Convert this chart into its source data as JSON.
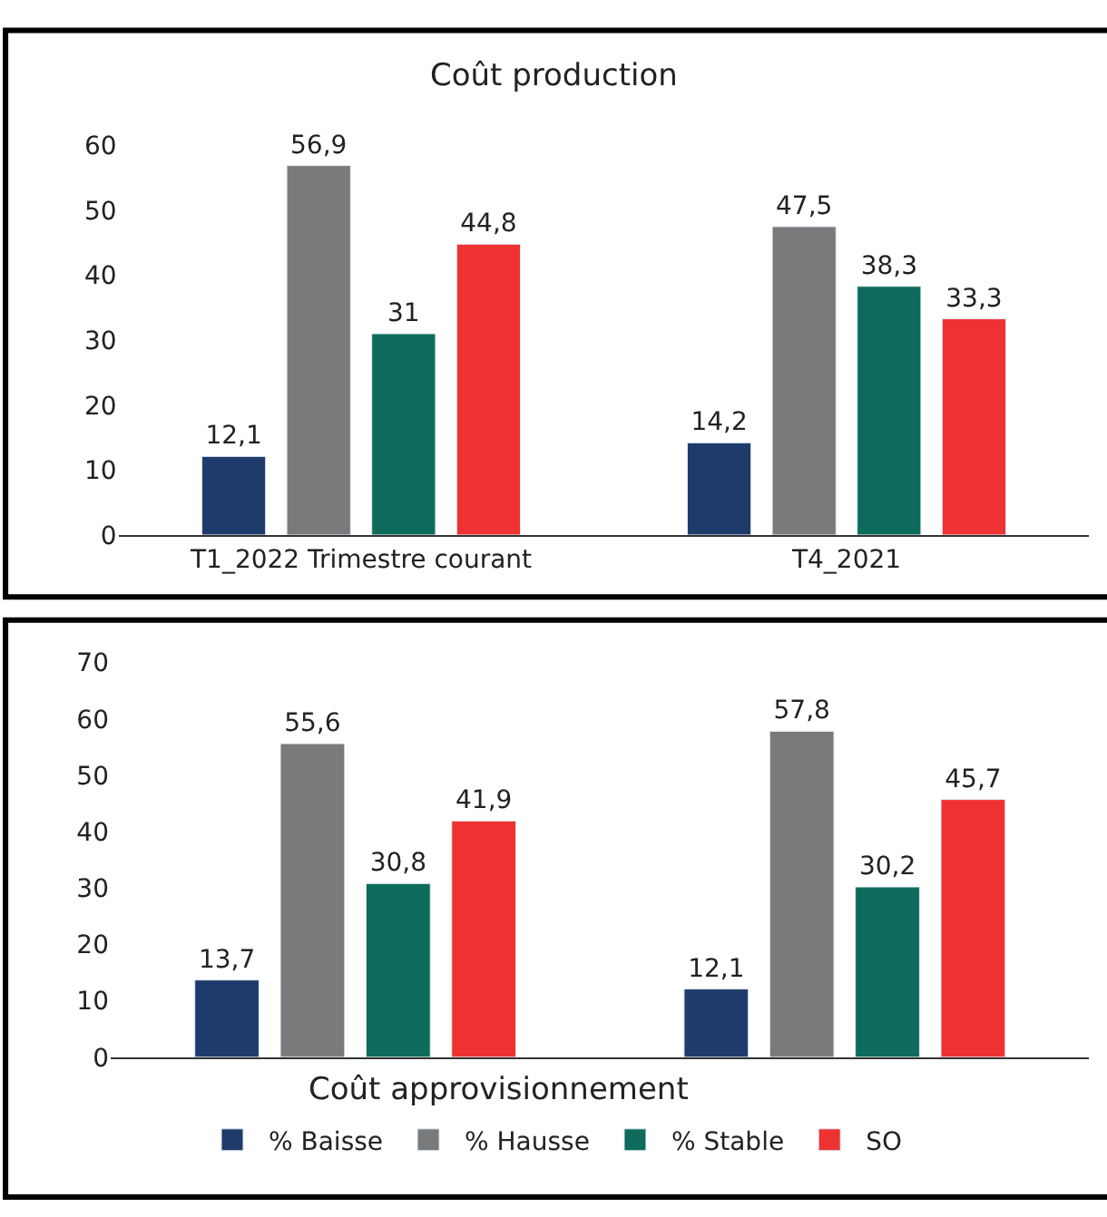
{
  "chart_data": [
    {
      "type": "bar",
      "title": "Coût production",
      "categories": [
        "T1_2022 Trimestre courant",
        "T4_2021"
      ],
      "ylim": [
        0,
        60
      ],
      "yticks": [
        0,
        10,
        20,
        30,
        40,
        50,
        60
      ],
      "series": [
        {
          "color": "#1f3b6b",
          "values": [
            12.1,
            14.2
          ],
          "value_labels": [
            "12,1",
            "14,2"
          ]
        },
        {
          "color": "#797a7c",
          "values": [
            56.9,
            47.5
          ],
          "value_labels": [
            "56,9",
            "47,5"
          ]
        },
        {
          "color": "#0c6b5a",
          "values": [
            31,
            38.3
          ],
          "value_labels": [
            "31",
            "38,3"
          ]
        },
        {
          "color": "#ee3131",
          "values": [
            44.8,
            33.3
          ],
          "value_labels": [
            "44,8",
            "33,3"
          ]
        }
      ]
    },
    {
      "type": "bar",
      "title": "Coût approvisionnement",
      "categories": [
        null,
        null
      ],
      "ylim": [
        0,
        70
      ],
      "yticks": [
        0,
        10,
        20,
        30,
        40,
        50,
        60,
        70
      ],
      "legend": "bottom",
      "series": [
        {
          "name": "% Baisse",
          "color": "#1f3b6b",
          "values": [
            13.7,
            12.1
          ],
          "value_labels": [
            "13,7",
            "12,1"
          ]
        },
        {
          "name": "% Hausse",
          "color": "#797a7c",
          "values": [
            55.6,
            57.8
          ],
          "value_labels": [
            "55,6",
            "57,8"
          ]
        },
        {
          "name": "% Stable",
          "color": "#0c6b5a",
          "values": [
            30.8,
            30.2
          ],
          "value_labels": [
            "30,8",
            "30,2"
          ]
        },
        {
          "name": "SO",
          "color": "#ee3131",
          "values": [
            41.9,
            45.7
          ],
          "value_labels": [
            "41,9",
            "45,7"
          ]
        }
      ]
    }
  ]
}
